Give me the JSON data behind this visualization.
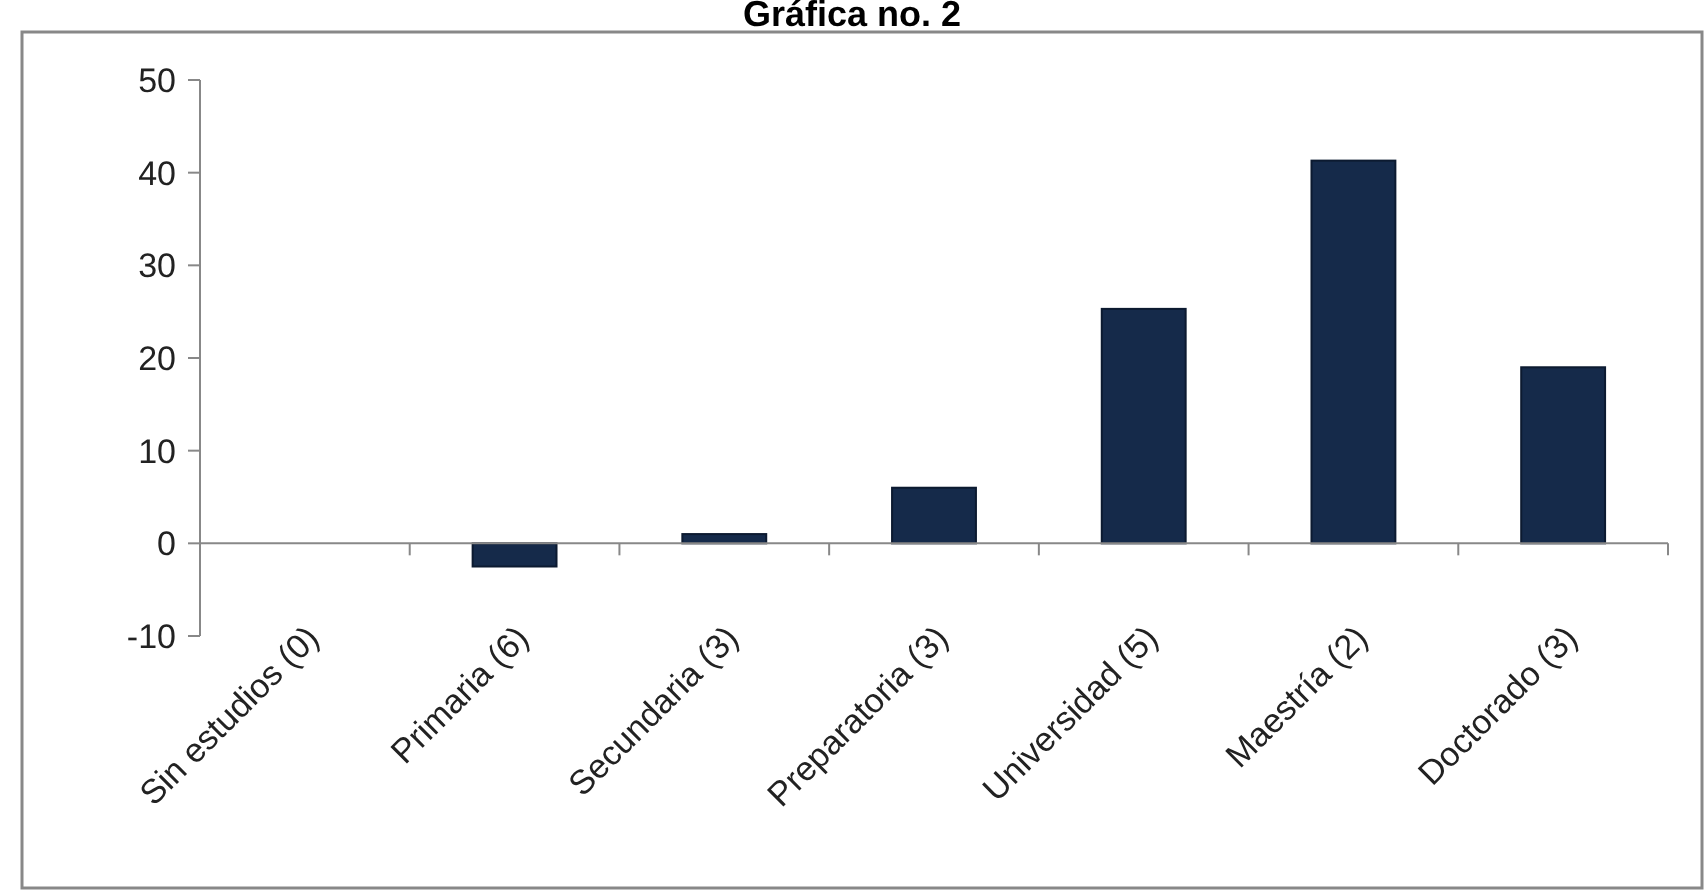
{
  "chart_data": {
    "type": "bar",
    "title": "Gráfica no. 2",
    "categories": [
      "Sin estudios (0)",
      "Primaria (6)",
      "Secundaria (3)",
      "Preparatoria (3)",
      "Universidad (5)",
      "Maestría (2)",
      "Doctorado (3)"
    ],
    "values": [
      0,
      -2.5,
      1,
      6,
      25.3,
      41.3,
      19
    ],
    "color": "#152a4a",
    "ylim": [
      -10,
      50
    ],
    "yticks": [
      -10,
      0,
      10,
      20,
      30,
      40,
      50
    ],
    "grid": false
  }
}
